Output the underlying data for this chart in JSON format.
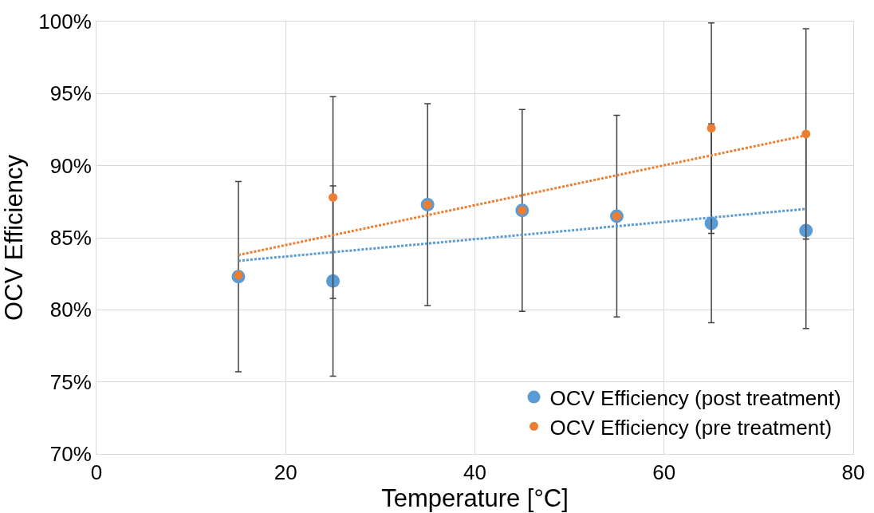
{
  "chart_data": {
    "type": "scatter",
    "xlabel": "Temperature [°C]",
    "ylabel": "OCV Efficiency",
    "xlim": [
      0,
      80
    ],
    "xticks": [
      0,
      20,
      40,
      60,
      80
    ],
    "ylim": [
      70,
      100
    ],
    "yticks": [
      {
        "value": 70,
        "label": "70%"
      },
      {
        "value": 75,
        "label": "75%"
      },
      {
        "value": 80,
        "label": "80%"
      },
      {
        "value": 85,
        "label": "85%"
      },
      {
        "value": 90,
        "label": "90%"
      },
      {
        "value": 95,
        "label": "95%"
      },
      {
        "value": 100,
        "label": "100%"
      }
    ],
    "grid": true,
    "legend": "bottom right",
    "series": [
      {
        "name": "OCV Efficiency (post treatment)",
        "color": "#5b9bd5",
        "x": [
          15,
          25,
          35,
          45,
          55,
          65,
          75
        ],
        "values": [
          82.3,
          82.0,
          87.3,
          86.9,
          86.5,
          86.0,
          85.5
        ],
        "errors": [
          6.6,
          6.6,
          7.0,
          7.0,
          7.0,
          6.9,
          6.8
        ],
        "marker": "circle"
      },
      {
        "name": "OCV Efficiency (pre treatment)",
        "color": "#ed7d31",
        "x": [
          15,
          25,
          35,
          45,
          55,
          65,
          75
        ],
        "values": [
          82.4,
          87.8,
          87.3,
          86.9,
          86.5,
          92.6,
          92.2
        ],
        "errors": [
          null,
          7.0,
          null,
          null,
          null,
          7.3,
          7.3
        ],
        "marker": "circle"
      },
      {
        "type": "line",
        "line_style": "dotted",
        "color": "#5b9bd5",
        "x": [
          15,
          75
        ],
        "values": [
          83.4,
          87.0
        ]
      },
      {
        "type": "line",
        "line_style": "dotted",
        "color": "#ed7d31",
        "x": [
          15,
          75
        ],
        "values": [
          83.8,
          92.1
        ]
      }
    ]
  }
}
